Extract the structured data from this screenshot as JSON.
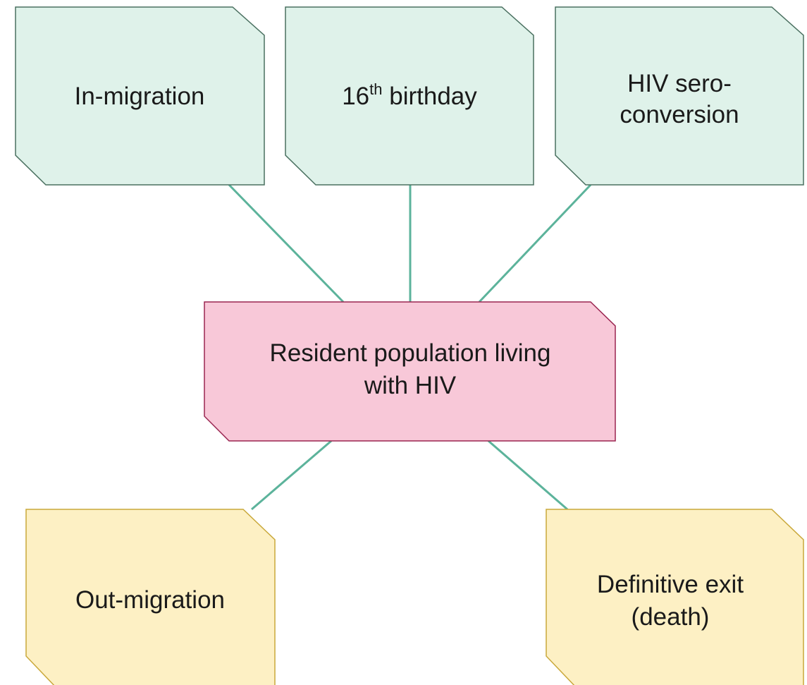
{
  "nodes": [
    {
      "lines": [
        "In-migration"
      ]
    },
    {
      "number": "16",
      "sup": "th",
      "rest": " birthday"
    },
    {
      "lines": [
        "HIV sero-",
        "conversion"
      ]
    },
    {
      "lines": [
        "Resident population living",
        "with HIV"
      ]
    },
    {
      "lines": [
        "Out-migration"
      ]
    },
    {
      "lines": [
        "Definitive exit",
        "(death)"
      ]
    }
  ]
}
